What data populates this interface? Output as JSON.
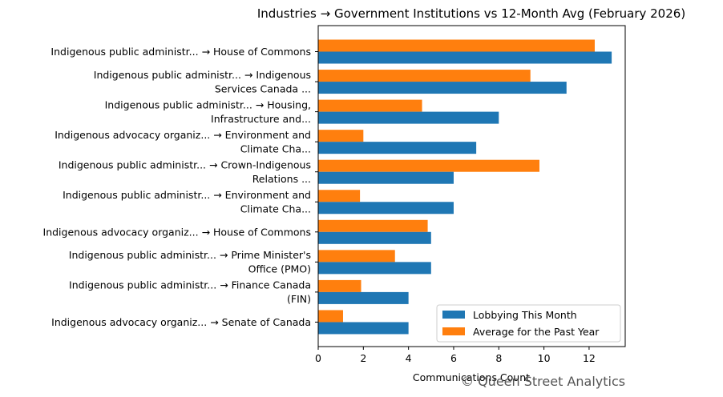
{
  "chart_data": {
    "type": "bar",
    "orientation": "horizontal",
    "title": "Industries → Government Institutions vs 12-Month Avg (February 2026)",
    "xlabel": "Communications Count",
    "ylabel": "",
    "xlim": [
      0,
      13.6
    ],
    "x_ticks": [
      "0",
      "2",
      "4",
      "6",
      "8",
      "10",
      "12"
    ],
    "grid": false,
    "legend_position": "bottom-right",
    "categories": [
      [
        "Indigenous public administr... → House of Commons"
      ],
      [
        "Indigenous public administr... → Indigenous",
        "Services Canada ..."
      ],
      [
        "Indigenous public administr... → Housing,",
        "Infrastructure and..."
      ],
      [
        "Indigenous advocacy organiz... → Environment and",
        "Climate Cha..."
      ],
      [
        "Indigenous public administr... → Crown-Indigenous",
        "Relations ..."
      ],
      [
        "Indigenous public administr... → Environment and",
        "Climate Cha..."
      ],
      [
        "Indigenous advocacy organiz... → House of Commons"
      ],
      [
        "Indigenous public administr... → Prime Minister's",
        "Office (PMO)"
      ],
      [
        "Indigenous public administr... → Finance Canada",
        "(FIN)"
      ],
      [
        "Indigenous advocacy organiz... → Senate of Canada"
      ]
    ],
    "series": [
      {
        "name": "Lobbying This Month",
        "color": "#1f77b4",
        "values": [
          13,
          11,
          8,
          7,
          6,
          6,
          5,
          5,
          4,
          4
        ]
      },
      {
        "name": "Average for the Past Year",
        "color": "#ff7f0e",
        "values": [
          12.25,
          9.4,
          4.6,
          2.0,
          9.8,
          1.85,
          4.85,
          3.4,
          1.9,
          1.1
        ]
      }
    ]
  },
  "watermark": "© Queen Street Analytics"
}
